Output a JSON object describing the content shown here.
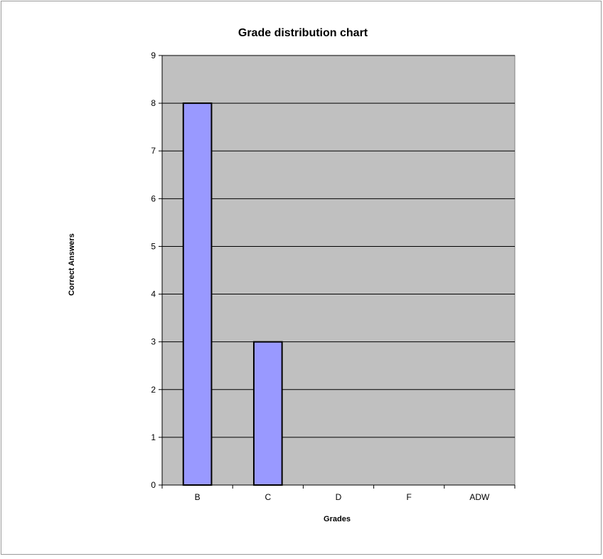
{
  "chart_data": {
    "type": "bar",
    "title": "Grade distribution chart",
    "xlabel": "Grades",
    "ylabel": "Correct Answers",
    "categories": [
      "B",
      "C",
      "D",
      "F",
      "ADW"
    ],
    "values": [
      8,
      3,
      0,
      0,
      0
    ],
    "yticks": [
      "0",
      "1",
      "2",
      "3",
      "4",
      "5",
      "6",
      "7",
      "8",
      "9"
    ],
    "ylim": [
      0,
      9
    ],
    "grid": true,
    "legend": "none",
    "colors": {
      "plot_background": "#c0c0c0",
      "bar_fill": "#9999ff",
      "bar_stroke": "#000000",
      "gridline": "#000000"
    }
  }
}
